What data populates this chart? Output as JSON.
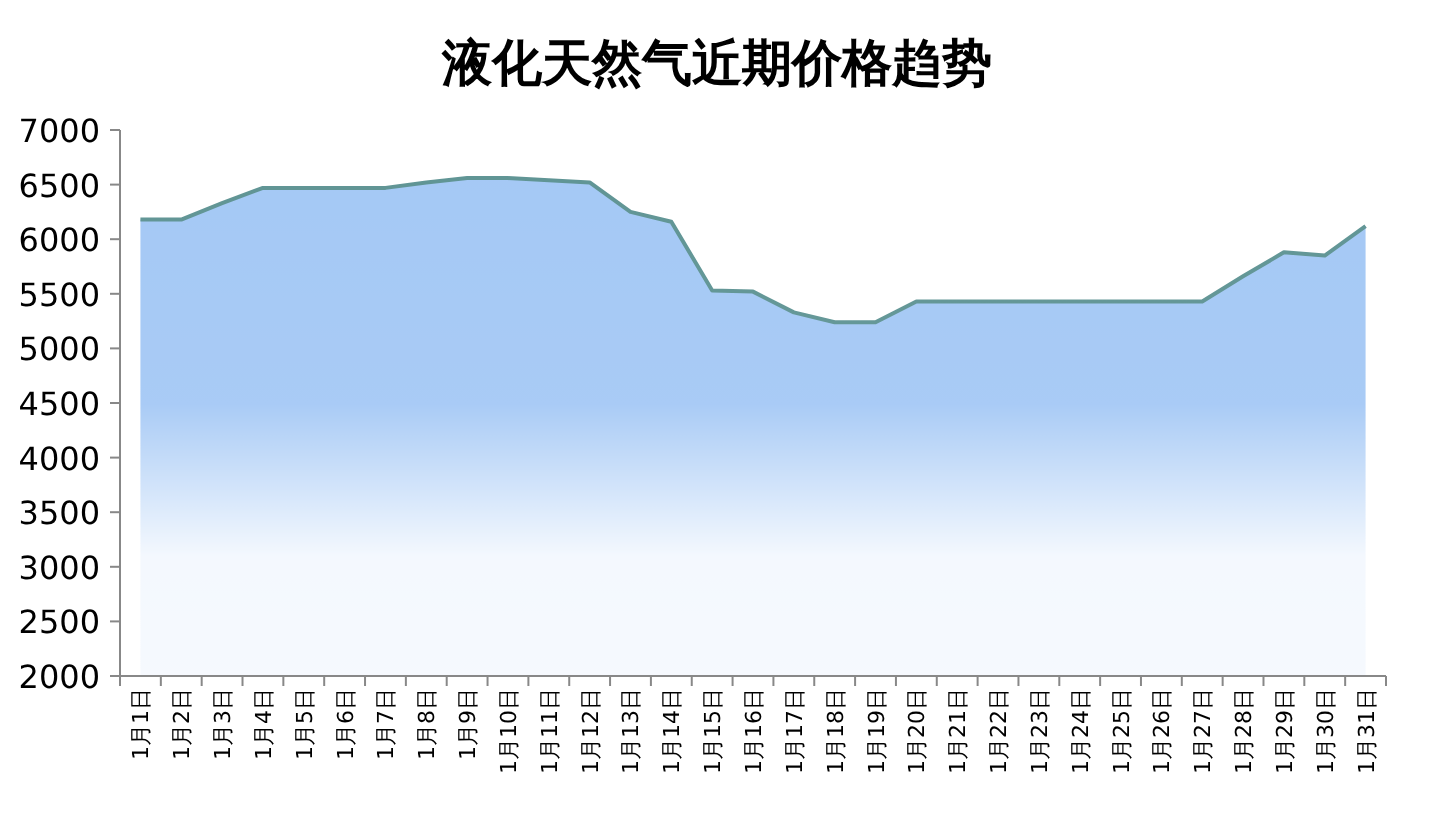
{
  "chart_data": {
    "type": "area",
    "title": "液化天然气近期价格趋势",
    "categories": [
      "1月1日",
      "1月2日",
      "1月3日",
      "1月4日",
      "1月5日",
      "1月6日",
      "1月7日",
      "1月8日",
      "1月9日",
      "1月10日",
      "1月11日",
      "1月12日",
      "1月13日",
      "1月14日",
      "1月15日",
      "1月16日",
      "1月17日",
      "1月18日",
      "1月19日",
      "1月20日",
      "1月21日",
      "1月22日",
      "1月23日",
      "1月24日",
      "1月25日",
      "1月26日",
      "1月27日",
      "1月28日",
      "1月29日",
      "1月30日",
      "1月31日"
    ],
    "series": [
      {
        "color": "#a4c8f5",
        "values": [
          6180,
          6180,
          6330,
          6470,
          6470,
          6470,
          6470,
          6520,
          6560,
          6560,
          6540,
          6520,
          6250,
          6160,
          5530,
          5520,
          5330,
          5240,
          5240,
          5430,
          5430,
          5430,
          5430,
          5430,
          5430,
          5430,
          5430,
          5660,
          5880,
          5850,
          6120
        ]
      }
    ],
    "ylim": [
      2000,
      7000
    ],
    "yticks": [
      2000,
      2500,
      3000,
      3500,
      4000,
      4500,
      5000,
      5500,
      6000,
      6500,
      7000
    ],
    "grid": false
  }
}
